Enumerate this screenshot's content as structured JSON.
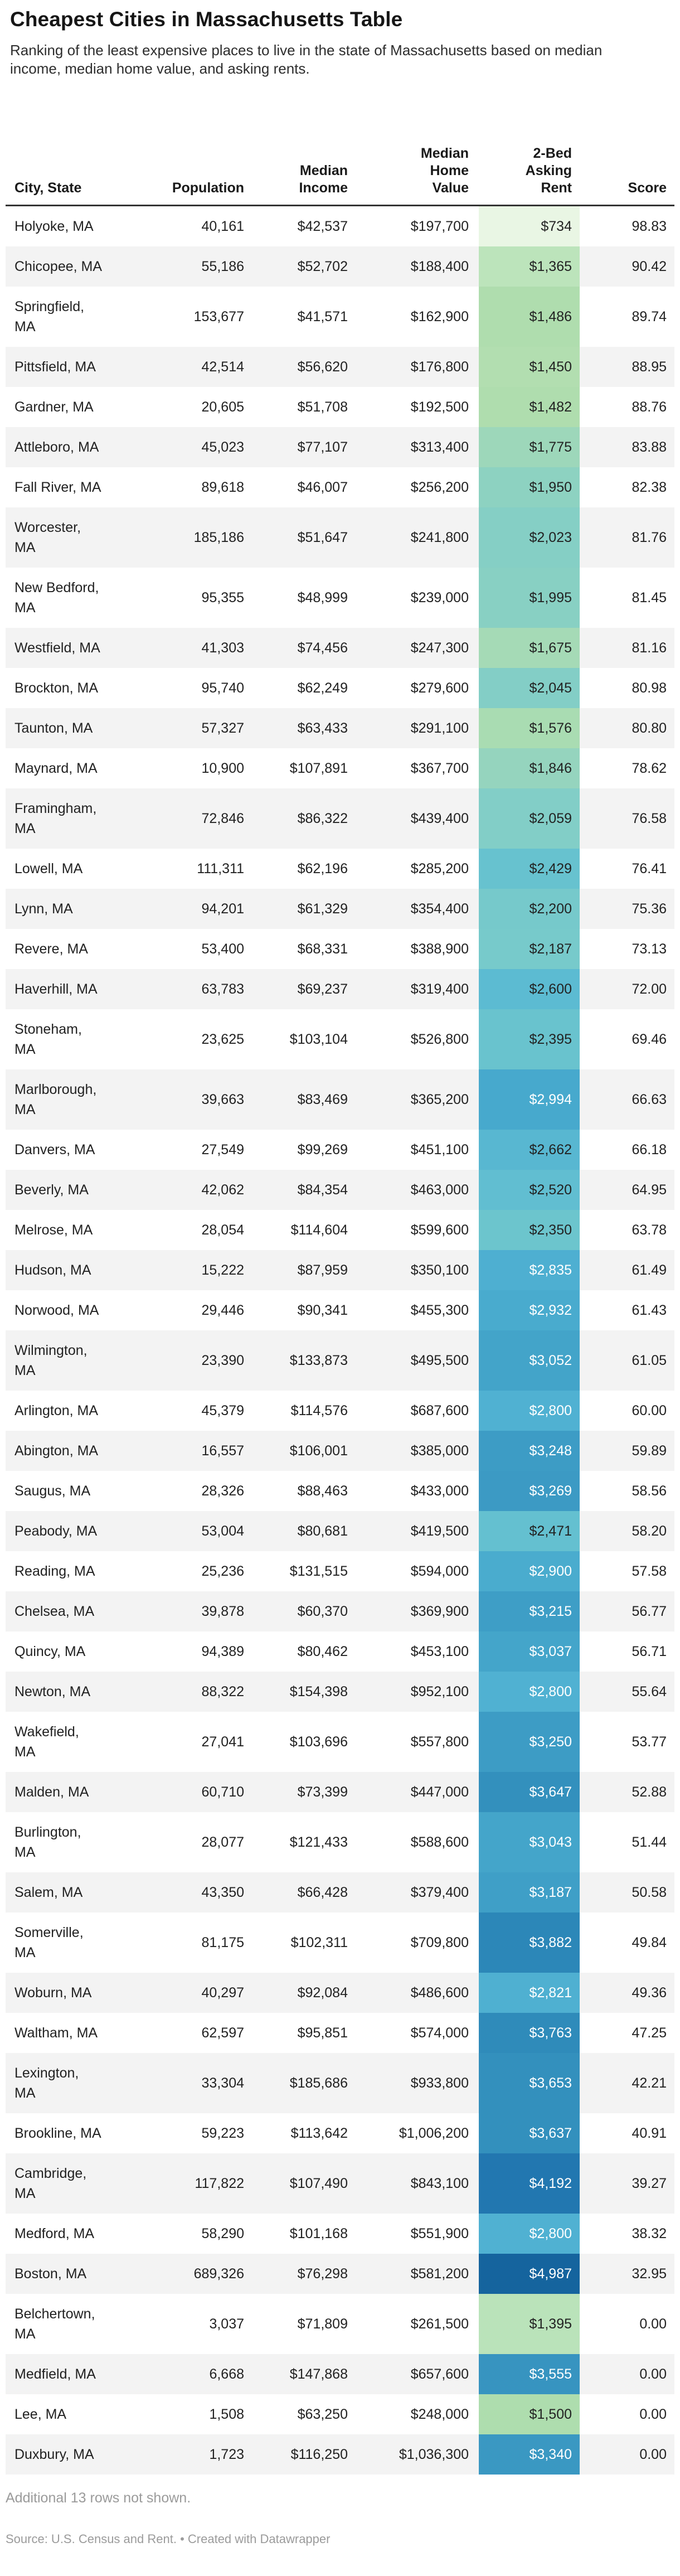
{
  "header": {
    "title": "Cheapest Cities in Massachusetts Table",
    "description": "Ranking of the least expensive places to live in the state of Massachusetts based on median\nincome, median home value, and asking rents."
  },
  "footer": {
    "note": "Additional 13 rows not shown.",
    "source": "Source: U.S. Census and Rent.",
    "separator": "•",
    "credit": "Created with Datawrapper"
  },
  "colors": {
    "stripe": "#f3f3f3",
    "header_rule": "#333333",
    "body_text": "#222222",
    "muted_text": "#9b9b9b",
    "rent_scale_low": "#e9f6e4",
    "rent_scale_mid": "#7bccc4",
    "rent_scale_high": "#15649e"
  },
  "chart_data": {
    "type": "table",
    "title": "Cheapest Cities in Massachusetts Table",
    "columns": [
      {
        "id": "city",
        "label": "City, State",
        "align": "left"
      },
      {
        "id": "population",
        "label": "Population",
        "align": "right"
      },
      {
        "id": "median_income",
        "label": "Median\nIncome",
        "align": "right"
      },
      {
        "id": "median_home_value",
        "label": "Median\nHome\nValue",
        "align": "right"
      },
      {
        "id": "rent_2bed",
        "label": "2-Bed\nAsking\nRent",
        "align": "right"
      },
      {
        "id": "score",
        "label": "Score",
        "align": "right"
      }
    ],
    "rows": [
      {
        "city": "Holyoke, MA",
        "population": "40,161",
        "median_income": "$42,537",
        "median_home_value": "$197,700",
        "rent_2bed": "$734",
        "score": "98.83",
        "rent_bg": "#e9f6e4",
        "rent_text_light": false
      },
      {
        "city": "Chicopee, MA",
        "population": "55,186",
        "median_income": "$52,702",
        "median_home_value": "$188,400",
        "rent_2bed": "$1,365",
        "score": "90.42",
        "rent_bg": "#bce4bb",
        "rent_text_light": false
      },
      {
        "city": "Springfield,\nMA",
        "population": "153,677",
        "median_income": "$41,571",
        "median_home_value": "$162,900",
        "rent_2bed": "$1,486",
        "score": "89.74",
        "rent_bg": "#afddae",
        "rent_text_light": false
      },
      {
        "city": "Pittsfield, MA",
        "population": "42,514",
        "median_income": "$56,620",
        "median_home_value": "$176,800",
        "rent_2bed": "$1,450",
        "score": "88.95",
        "rent_bg": "#b2deb0",
        "rent_text_light": false
      },
      {
        "city": "Gardner, MA",
        "population": "20,605",
        "median_income": "$51,708",
        "median_home_value": "$192,500",
        "rent_2bed": "$1,482",
        "score": "88.76",
        "rent_bg": "#afddae",
        "rent_text_light": false
      },
      {
        "city": "Attleboro, MA",
        "population": "45,023",
        "median_income": "$77,107",
        "median_home_value": "$313,400",
        "rent_2bed": "$1,775",
        "score": "83.88",
        "rent_bg": "#9dd7ba",
        "rent_text_light": false
      },
      {
        "city": "Fall River, MA",
        "population": "89,618",
        "median_income": "$46,007",
        "median_home_value": "$256,200",
        "rent_2bed": "$1,950",
        "score": "82.38",
        "rent_bg": "#8dd2c1",
        "rent_text_light": false
      },
      {
        "city": "Worcester,\nMA",
        "population": "185,186",
        "median_income": "$51,647",
        "median_home_value": "$241,800",
        "rent_2bed": "$2,023",
        "score": "81.76",
        "rent_bg": "#85cfc5",
        "rent_text_light": false
      },
      {
        "city": "New Bedford,\nMA",
        "population": "95,355",
        "median_income": "$48,999",
        "median_home_value": "$239,000",
        "rent_2bed": "$1,995",
        "score": "81.45",
        "rent_bg": "#88d0c3",
        "rent_text_light": false
      },
      {
        "city": "Westfield, MA",
        "population": "41,303",
        "median_income": "$74,456",
        "median_home_value": "$247,300",
        "rent_2bed": "$1,675",
        "score": "81.16",
        "rent_bg": "#a5dab6",
        "rent_text_light": false
      },
      {
        "city": "Brockton, MA",
        "population": "95,740",
        "median_income": "$62,249",
        "median_home_value": "$279,600",
        "rent_2bed": "$2,045",
        "score": "80.98",
        "rent_bg": "#83cec6",
        "rent_text_light": false
      },
      {
        "city": "Taunton, MA",
        "population": "57,327",
        "median_income": "$63,433",
        "median_home_value": "$291,100",
        "rent_2bed": "$1,576",
        "score": "80.80",
        "rent_bg": "#a9dcb2",
        "rent_text_light": false
      },
      {
        "city": "Maynard, MA",
        "population": "10,900",
        "median_income": "$107,891",
        "median_home_value": "$367,700",
        "rent_2bed": "$1,846",
        "score": "78.62",
        "rent_bg": "#95d4be",
        "rent_text_light": false
      },
      {
        "city": "Framingham,\nMA",
        "population": "72,846",
        "median_income": "$86,322",
        "median_home_value": "$439,400",
        "rent_2bed": "$2,059",
        "score": "76.58",
        "rent_bg": "#82cec7",
        "rent_text_light": false
      },
      {
        "city": "Lowell, MA",
        "population": "111,311",
        "median_income": "$62,196",
        "median_home_value": "$285,200",
        "rent_2bed": "$2,429",
        "score": "76.41",
        "rent_bg": "#67c2cf",
        "rent_text_light": false
      },
      {
        "city": "Lynn, MA",
        "population": "94,201",
        "median_income": "$61,329",
        "median_home_value": "$354,400",
        "rent_2bed": "$2,200",
        "score": "75.36",
        "rent_bg": "#76c9cb",
        "rent_text_light": false
      },
      {
        "city": "Revere, MA",
        "population": "53,400",
        "median_income": "$68,331",
        "median_home_value": "$388,900",
        "rent_2bed": "$2,187",
        "score": "73.13",
        "rent_bg": "#77cacb",
        "rent_text_light": false
      },
      {
        "city": "Haverhill, MA",
        "population": "63,783",
        "median_income": "$69,237",
        "median_home_value": "$319,400",
        "rent_2bed": "$2,600",
        "score": "72.00",
        "rent_bg": "#5cbbd2",
        "rent_text_light": false
      },
      {
        "city": "Stoneham,\nMA",
        "population": "23,625",
        "median_income": "$103,104",
        "median_home_value": "$526,800",
        "rent_2bed": "$2,395",
        "score": "69.46",
        "rent_bg": "#69c3ce",
        "rent_text_light": false
      },
      {
        "city": "Marlborough,\nMA",
        "population": "39,663",
        "median_income": "$83,469",
        "median_home_value": "$365,200",
        "rent_2bed": "$2,994",
        "score": "66.63",
        "rent_bg": "#47a9cd",
        "rent_text_light": true
      },
      {
        "city": "Danvers, MA",
        "population": "27,549",
        "median_income": "$99,269",
        "median_home_value": "$451,100",
        "rent_2bed": "$2,662",
        "score": "66.18",
        "rent_bg": "#58b7d1",
        "rent_text_light": false
      },
      {
        "city": "Beverly, MA",
        "population": "42,062",
        "median_income": "$84,354",
        "median_home_value": "$463,000",
        "rent_2bed": "$2,520",
        "score": "64.95",
        "rent_bg": "#61bed1",
        "rent_text_light": false
      },
      {
        "city": "Melrose, MA",
        "population": "28,054",
        "median_income": "$114,604",
        "median_home_value": "$599,600",
        "rent_2bed": "$2,350",
        "score": "63.78",
        "rent_bg": "#6cc5cd",
        "rent_text_light": false
      },
      {
        "city": "Hudson, MA",
        "population": "15,222",
        "median_income": "$87,959",
        "median_home_value": "$350,100",
        "rent_2bed": "$2,835",
        "score": "61.49",
        "rent_bg": "#4eafd1",
        "rent_text_light": true
      },
      {
        "city": "Norwood, MA",
        "population": "29,446",
        "median_income": "$90,341",
        "median_home_value": "$455,300",
        "rent_2bed": "$2,932",
        "score": "61.43",
        "rent_bg": "#49abce",
        "rent_text_light": true
      },
      {
        "city": "Wilmington,\nMA",
        "population": "23,390",
        "median_income": "$133,873",
        "median_home_value": "$495,500",
        "rent_2bed": "$3,052",
        "score": "61.05",
        "rent_bg": "#43a4c9",
        "rent_text_light": true
      },
      {
        "city": "Arlington, MA",
        "population": "45,379",
        "median_income": "$114,576",
        "median_home_value": "$687,600",
        "rent_2bed": "$2,800",
        "score": "60.00",
        "rent_bg": "#50b1d2",
        "rent_text_light": true
      },
      {
        "city": "Abington, MA",
        "population": "16,557",
        "median_income": "$106,001",
        "median_home_value": "$385,000",
        "rent_2bed": "$3,248",
        "score": "59.89",
        "rent_bg": "#3d9cc5",
        "rent_text_light": true
      },
      {
        "city": "Saugus, MA",
        "population": "28,326",
        "median_income": "$88,463",
        "median_home_value": "$433,000",
        "rent_2bed": "$3,269",
        "score": "58.56",
        "rent_bg": "#3c9ac4",
        "rent_text_light": true
      },
      {
        "city": "Peabody, MA",
        "population": "53,004",
        "median_income": "$80,681",
        "median_home_value": "$419,500",
        "rent_2bed": "$2,471",
        "score": "58.20",
        "rent_bg": "#64c0d0",
        "rent_text_light": false
      },
      {
        "city": "Reading, MA",
        "population": "25,236",
        "median_income": "$131,515",
        "median_home_value": "$594,000",
        "rent_2bed": "$2,900",
        "score": "57.58",
        "rent_bg": "#4aacce",
        "rent_text_light": true
      },
      {
        "city": "Chelsea, MA",
        "population": "39,878",
        "median_income": "$60,370",
        "median_home_value": "$369,900",
        "rent_2bed": "$3,215",
        "score": "56.77",
        "rent_bg": "#3e9ec6",
        "rent_text_light": true
      },
      {
        "city": "Quincy, MA",
        "population": "94,389",
        "median_income": "$80,462",
        "median_home_value": "$453,100",
        "rent_2bed": "$3,037",
        "score": "56.71",
        "rent_bg": "#44a5ca",
        "rent_text_light": true
      },
      {
        "city": "Newton, MA",
        "population": "88,322",
        "median_income": "$154,398",
        "median_home_value": "$952,100",
        "rent_2bed": "$2,800",
        "score": "55.64",
        "rent_bg": "#50b1d2",
        "rent_text_light": true
      },
      {
        "city": "Wakefield,\nMA",
        "population": "27,041",
        "median_income": "$103,696",
        "median_home_value": "$557,800",
        "rent_2bed": "$3,250",
        "score": "53.77",
        "rent_bg": "#3d9cc5",
        "rent_text_light": true
      },
      {
        "city": "Malden, MA",
        "population": "60,710",
        "median_income": "$73,399",
        "median_home_value": "$447,000",
        "rent_2bed": "$3,647",
        "score": "52.88",
        "rent_bg": "#3390bd",
        "rent_text_light": true
      },
      {
        "city": "Burlington,\nMA",
        "population": "28,077",
        "median_income": "$121,433",
        "median_home_value": "$588,600",
        "rent_2bed": "$3,043",
        "score": "51.44",
        "rent_bg": "#44a5ca",
        "rent_text_light": true
      },
      {
        "city": "Salem, MA",
        "population": "43,350",
        "median_income": "$66,428",
        "median_home_value": "$379,400",
        "rent_2bed": "$3,187",
        "score": "50.58",
        "rent_bg": "#3f9fc7",
        "rent_text_light": true
      },
      {
        "city": "Somerville,\nMA",
        "population": "81,175",
        "median_income": "$102,311",
        "median_home_value": "$709,800",
        "rent_2bed": "$3,882",
        "score": "49.84",
        "rent_bg": "#2c87b8",
        "rent_text_light": true
      },
      {
        "city": "Woburn, MA",
        "population": "40,297",
        "median_income": "$92,084",
        "median_home_value": "$486,600",
        "rent_2bed": "$2,821",
        "score": "49.36",
        "rent_bg": "#4fb0d1",
        "rent_text_light": true
      },
      {
        "city": "Waltham, MA",
        "population": "62,597",
        "median_income": "$95,851",
        "median_home_value": "$574,000",
        "rent_2bed": "$3,763",
        "score": "47.25",
        "rent_bg": "#2f8bba",
        "rent_text_light": true
      },
      {
        "city": "Lexington,\nMA",
        "population": "33,304",
        "median_income": "$185,686",
        "median_home_value": "$933,800",
        "rent_2bed": "$3,653",
        "score": "42.21",
        "rent_bg": "#3390bd",
        "rent_text_light": true
      },
      {
        "city": "Brookline, MA",
        "population": "59,223",
        "median_income": "$113,642",
        "median_home_value": "$1,006,200",
        "rent_2bed": "$3,637",
        "score": "40.91",
        "rent_bg": "#3390bd",
        "rent_text_light": true
      },
      {
        "city": "Cambridge,\nMA",
        "population": "117,822",
        "median_income": "$107,490",
        "median_home_value": "$843,100",
        "rent_2bed": "$4,192",
        "score": "39.27",
        "rent_bg": "#2277b0",
        "rent_text_light": true
      },
      {
        "city": "Medford, MA",
        "population": "58,290",
        "median_income": "$101,168",
        "median_home_value": "$551,900",
        "rent_2bed": "$2,800",
        "score": "38.32",
        "rent_bg": "#50b1d2",
        "rent_text_light": true
      },
      {
        "city": "Boston, MA",
        "population": "689,326",
        "median_income": "$76,298",
        "median_home_value": "$581,200",
        "rent_2bed": "$4,987",
        "score": "32.95",
        "rent_bg": "#15649e",
        "rent_text_light": true
      },
      {
        "city": "Belchertown,\nMA",
        "population": "3,037",
        "median_income": "$71,809",
        "median_home_value": "$261,500",
        "rent_2bed": "$1,395",
        "score": "0.00",
        "rent_bg": "#bae3ba",
        "rent_text_light": false
      },
      {
        "city": "Medfield, MA",
        "population": "6,668",
        "median_income": "$147,868",
        "median_home_value": "$657,600",
        "rent_2bed": "$3,555",
        "score": "0.00",
        "rent_bg": "#3794c0",
        "rent_text_light": true
      },
      {
        "city": "Lee, MA",
        "population": "1,508",
        "median_income": "$63,250",
        "median_home_value": "$248,000",
        "rent_2bed": "$1,500",
        "score": "0.00",
        "rent_bg": "#aeddae",
        "rent_text_light": false
      },
      {
        "city": "Duxbury, MA",
        "population": "1,723",
        "median_income": "$116,250",
        "median_home_value": "$1,036,300",
        "rent_2bed": "$3,340",
        "score": "0.00",
        "rent_bg": "#3a98c2",
        "rent_text_light": true
      }
    ]
  }
}
